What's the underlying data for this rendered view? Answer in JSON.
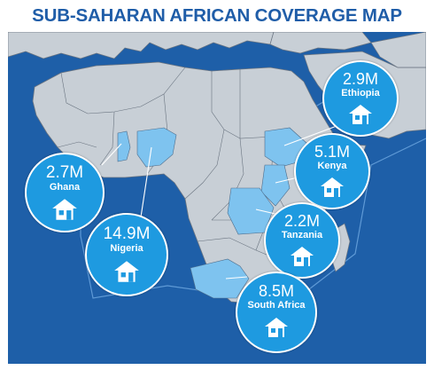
{
  "title": "SUB-SAHARAN AFRICAN COVERAGE MAP",
  "colors": {
    "title": "#1f5da8",
    "ocean": "#1e5fa8",
    "land": "#c8cfd6",
    "border": "#6a7480",
    "highlight": "#7ec3ef",
    "bubble": "#1e9ae0"
  },
  "markers": [
    {
      "country": "Ethiopia",
      "value": "2.9M",
      "icon": "house-icon"
    },
    {
      "country": "Kenya",
      "value": "5.1M",
      "icon": "house-icon"
    },
    {
      "country": "Ghana",
      "value": "2.7M",
      "icon": "house-icon"
    },
    {
      "country": "Tanzania",
      "value": "2.2M",
      "icon": "house-icon"
    },
    {
      "country": "Nigeria",
      "value": "14.9M",
      "icon": "house-icon"
    },
    {
      "country": "South Africa",
      "value": "8.5M",
      "icon": "house-icon"
    }
  ]
}
